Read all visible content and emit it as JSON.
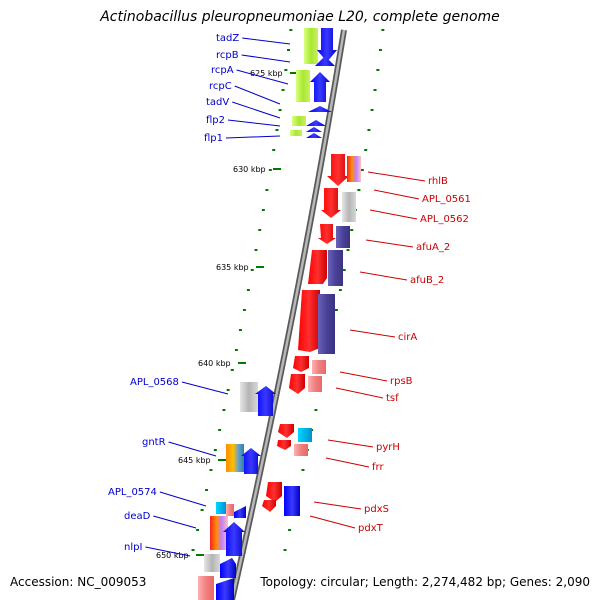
{
  "title": "Actinobacillus pleuropneumoniae L20, complete genome",
  "footer": {
    "accession": "Accession: NC_009053",
    "topology": "Topology: circular; Length: 2,274,482 bp; Genes: 2,090"
  },
  "scale_labels": [
    "625 kbp",
    "630 kbp",
    "635 kbp",
    "640 kbp",
    "645 kbp",
    "650 kbp"
  ],
  "genes_left": [
    "tadZ",
    "rcpB",
    "rcpA",
    "rcpC",
    "tadV",
    "flp2",
    "flp1",
    "APL_0568",
    "gntR",
    "APL_0574",
    "deaD",
    "nlpI"
  ],
  "genes_right": [
    "rhlB",
    "APL_0561",
    "APL_0562",
    "afuA_2",
    "afuB_2",
    "cirA",
    "rpsB",
    "tsf",
    "pyrH",
    "frr",
    "pdxS",
    "pdxT"
  ],
  "colors": {
    "backbone": "#8c8c8c",
    "forward_strand": "#0000ff",
    "reverse_strand": "#ff0000",
    "left_label": "#0000cc",
    "right_label": "#cc0000",
    "tick": "#007a00"
  }
}
